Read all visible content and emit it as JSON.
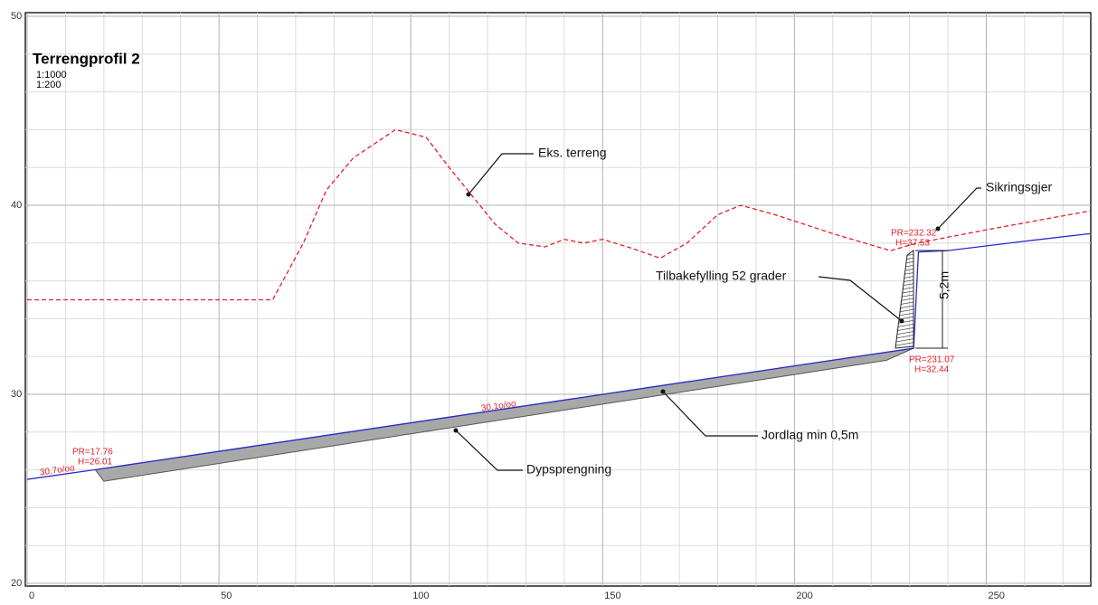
{
  "chart_data": {
    "type": "line",
    "title": "Terrengprofil 2",
    "subtitle": [
      "1:1000",
      "1:200"
    ],
    "xlim": [
      0,
      277
    ],
    "ylim": [
      20,
      50
    ],
    "xticks": [
      0,
      50,
      100,
      150,
      200,
      250
    ],
    "yticks": [
      20,
      30,
      40,
      50
    ],
    "xminor": [
      10,
      20,
      30,
      40,
      60,
      70,
      80,
      90,
      110,
      120,
      130,
      140,
      160,
      170,
      180,
      190,
      210,
      220,
      230,
      240,
      260,
      270
    ],
    "yminor": [
      22,
      24,
      26,
      28,
      32,
      34,
      36,
      38,
      42,
      44,
      46,
      48
    ],
    "grid": true,
    "series": [
      {
        "name": "Eks. terreng",
        "color": "#e0202a",
        "dash": true,
        "x": [
          0,
          64,
          72,
          78,
          85,
          96,
          104,
          110,
          116,
          122,
          128,
          135,
          140,
          145,
          150,
          158,
          165,
          172,
          180,
          186,
          195,
          210,
          225,
          232,
          250,
          277
        ],
        "values": [
          35,
          35,
          38,
          40.8,
          42.5,
          44,
          43.6,
          42,
          40.5,
          39,
          38,
          37.8,
          38.2,
          38,
          38.2,
          37.7,
          37.2,
          38,
          39.5,
          40,
          39.5,
          38.5,
          37.6,
          38,
          38.7,
          39.7
        ]
      },
      {
        "name": "Jordlag min 0,5m",
        "color": "#2a2ad0",
        "dash": false,
        "x": [
          0,
          17.76,
          231.07,
          232.32,
          240,
          260,
          277
        ],
        "values": [
          25.5,
          26.01,
          32.44,
          37.53,
          37.6,
          38.1,
          38.5
        ]
      },
      {
        "name": "Dypsprengning",
        "color": "#9a9a9a",
        "dash": false,
        "x": [
          17.76,
          20,
          224,
          231.07
        ],
        "values": [
          26.01,
          25.4,
          31.8,
          32.44
        ]
      }
    ],
    "point_labels": [
      "PR=17.76",
      "H=26.01",
      "30.7o/oo",
      "30.1o/oo",
      "PR=231.07",
      "H=32.44",
      "PR=232.32",
      "H=37.53",
      "5,2m"
    ],
    "annotations": [
      "Eks. terreng",
      "Sikringsgjer",
      "Tilbakefylling 52 grader",
      "Jordlag min 0,5m",
      "Dypsprengning"
    ]
  }
}
